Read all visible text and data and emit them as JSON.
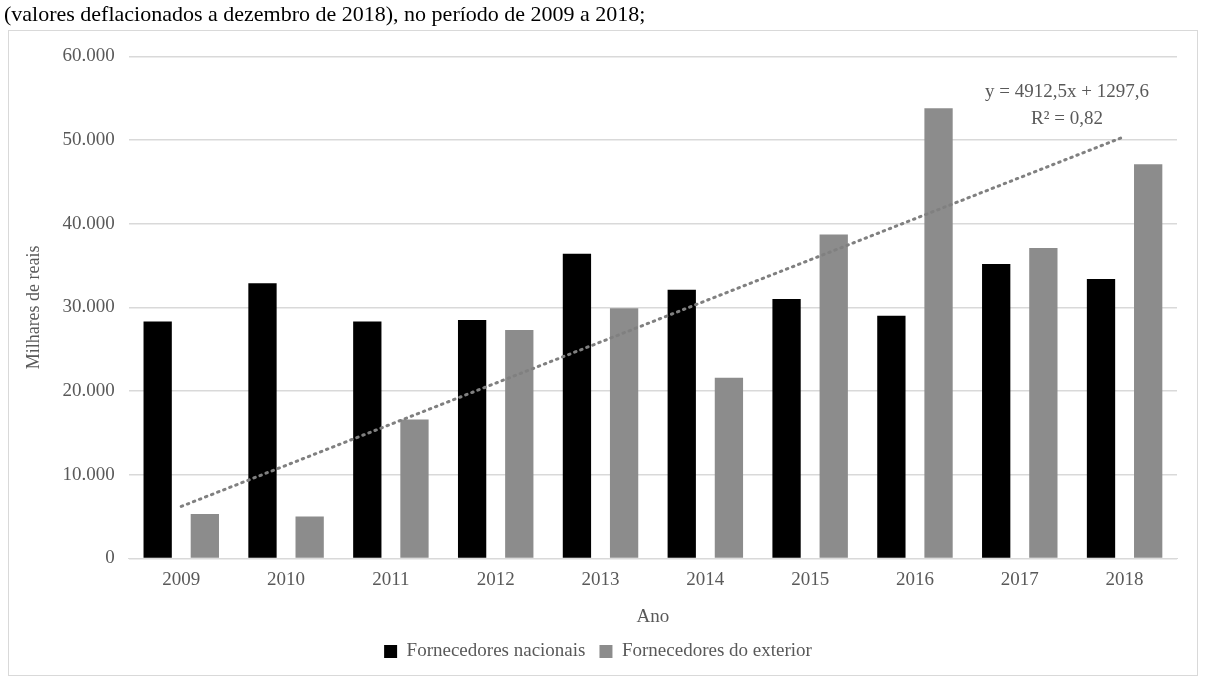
{
  "chart_data": {
    "type": "bar",
    "title": "(valores deflacionados a dezembro de 2018), no período de 2009 a 2018;",
    "xlabel": "Ano",
    "ylabel": "Milhares de reais",
    "categories": [
      "2009",
      "2010",
      "2011",
      "2012",
      "2013",
      "2014",
      "2015",
      "2016",
      "2017",
      "2018"
    ],
    "series": [
      {
        "name": "Fornecedores nacionais",
        "color": "#000000",
        "values": [
          28300,
          32900,
          28300,
          28500,
          36400,
          32100,
          31000,
          29000,
          35200,
          33400
        ]
      },
      {
        "name": "Fornecedores do exterior",
        "color": "#8c8c8c",
        "values": [
          5300,
          5000,
          16600,
          27300,
          29900,
          21600,
          38700,
          53800,
          37100,
          47100
        ]
      },
      {
        "type": "line",
        "color": "#808080",
        "line_style": "dotted",
        "marker": "none",
        "values": [
          6210,
          11122.5,
          16035,
          20947.5,
          25860,
          30772.5,
          35685,
          40597.5,
          45510,
          50422.5
        ]
      }
    ],
    "annotations": [
      "y = 4912,5x + 1297,6",
      "R² = 0,82"
    ],
    "ylim": [
      0,
      60000
    ],
    "yticks": [
      0,
      {
        "value": 10000,
        "label": "10.000"
      },
      {
        "value": 20000,
        "label": "20.000"
      },
      {
        "value": 30000,
        "label": "30.000"
      },
      {
        "value": 40000,
        "label": "40.000"
      },
      {
        "value": 50000,
        "label": "50.000"
      },
      {
        "value": 60000,
        "label": "60.000"
      }
    ],
    "grid": "y",
    "legend": "bottom"
  }
}
